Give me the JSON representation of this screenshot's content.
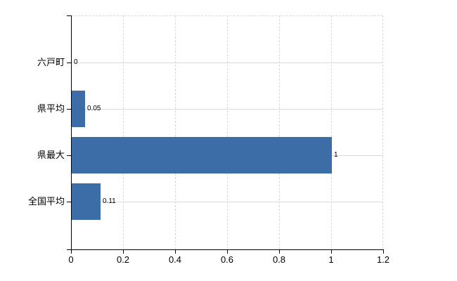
{
  "chart_data": {
    "type": "bar",
    "orientation": "horizontal",
    "title": "",
    "xlabel": "",
    "ylabel": "",
    "categories": [
      "六戸町",
      "県平均",
      "県最大",
      "全国平均"
    ],
    "values": [
      0,
      0.05,
      1,
      0.11
    ],
    "value_labels": [
      "0",
      "0.05",
      "1",
      "0.11"
    ],
    "x_tick_values": [
      0,
      0.2,
      0.4,
      0.6,
      0.8,
      1,
      1.2
    ],
    "x_tick_labels": [
      "0",
      "0.2",
      "0.4",
      "0.6",
      "0.8",
      "1",
      "1.2"
    ],
    "xlim": [
      0,
      1.2
    ],
    "grid": true,
    "legend": null,
    "colors": {
      "bar": "#3d6da6",
      "axis": "#000000",
      "gridline": "#d9d9d9",
      "text": "#000000"
    }
  }
}
